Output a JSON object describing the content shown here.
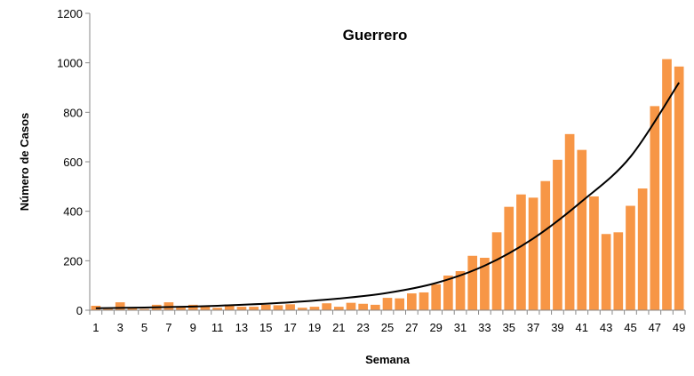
{
  "chart_data": {
    "type": "bar",
    "title": "Guerrero",
    "xlabel": "Semana",
    "ylabel": "Número de Casos",
    "ylim": [
      0,
      1200
    ],
    "yticks": [
      0,
      200,
      400,
      600,
      800,
      1000,
      1200
    ],
    "xtick_labels": [
      "1",
      "3",
      "5",
      "7",
      "9",
      "11",
      "13",
      "15",
      "17",
      "19",
      "21",
      "23",
      "25",
      "27",
      "29",
      "31",
      "33",
      "35",
      "37",
      "39",
      "41",
      "43",
      "45",
      "47",
      "49"
    ],
    "categories": [
      1,
      2,
      3,
      4,
      5,
      6,
      7,
      8,
      9,
      10,
      11,
      12,
      13,
      14,
      15,
      16,
      17,
      18,
      19,
      20,
      21,
      22,
      23,
      24,
      25,
      26,
      27,
      28,
      29,
      30,
      31,
      32,
      33,
      34,
      35,
      36,
      37,
      38,
      39,
      40,
      41,
      42,
      43,
      44,
      45,
      46,
      47,
      48,
      49
    ],
    "values": [
      18,
      5,
      32,
      8,
      5,
      22,
      32,
      14,
      22,
      18,
      10,
      22,
      14,
      14,
      22,
      20,
      24,
      10,
      14,
      28,
      14,
      30,
      26,
      22,
      50,
      48,
      68,
      72,
      105,
      140,
      158,
      220,
      212,
      315,
      418,
      468,
      455,
      522,
      608,
      712,
      648,
      460,
      308,
      315,
      422,
      492,
      825,
      1015,
      985
    ],
    "trendline": {
      "type": "exponential",
      "points": [
        [
          1,
          8
        ],
        [
          5,
          11
        ],
        [
          9,
          15
        ],
        [
          13,
          22
        ],
        [
          17,
          32
        ],
        [
          21,
          47
        ],
        [
          25,
          70
        ],
        [
          29,
          110
        ],
        [
          33,
          180
        ],
        [
          37,
          290
        ],
        [
          41,
          440
        ],
        [
          45,
          620
        ],
        [
          49,
          920
        ]
      ]
    },
    "grid": false,
    "legend": "none",
    "colors": {
      "bar": "#F79646",
      "trendline": "#000000",
      "axis": "#888888"
    }
  }
}
